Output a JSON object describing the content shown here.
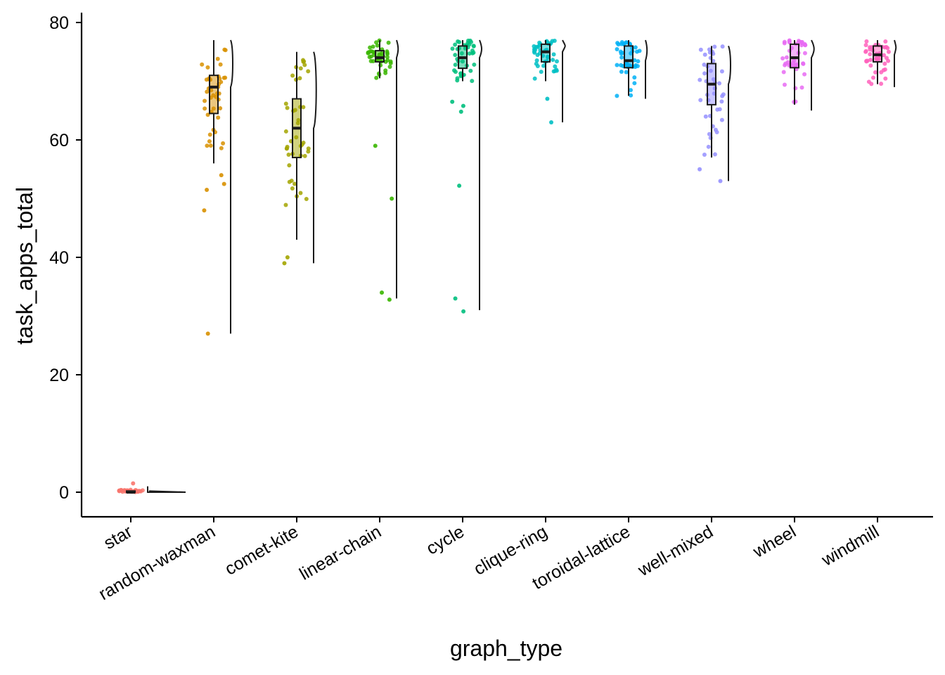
{
  "chart_data": {
    "type": "box-jitter-violin",
    "title": "",
    "xlabel": "graph_type",
    "ylabel": "task_apps_total",
    "ylim": [
      -4,
      81
    ],
    "yticks": [
      0,
      20,
      40,
      60,
      80
    ],
    "grid": false,
    "legend": "none",
    "categories": [
      "star",
      "random-waxman",
      "comet-kite",
      "linear-chain",
      "cycle",
      "clique-ring",
      "toroidal-lattice",
      "well-mixed",
      "wheel",
      "windmill"
    ],
    "colors": [
      "#F8766D",
      "#D89000",
      "#A3A500",
      "#39B600",
      "#00BF7D",
      "#00BFC4",
      "#00B0F6",
      "#9590FF",
      "#E76BF3",
      "#FF62BC"
    ],
    "boxes": [
      {
        "q1": 0,
        "median": 0,
        "q3": 0.2,
        "whisker_low": 0,
        "whisker_high": 0.3
      },
      {
        "q1": 64.5,
        "median": 69,
        "q3": 71,
        "whisker_low": 56,
        "whisker_high": 77
      },
      {
        "q1": 57,
        "median": 62,
        "q3": 67,
        "whisker_low": 43,
        "whisker_high": 75
      },
      {
        "q1": 73.3,
        "median": 74,
        "q3": 75.2,
        "whisker_low": 70.5,
        "whisker_high": 77
      },
      {
        "q1": 72.2,
        "median": 74,
        "q3": 76,
        "whisker_low": 70,
        "whisker_high": 77
      },
      {
        "q1": 73.3,
        "median": 75,
        "q3": 76.3,
        "whisker_low": 70,
        "whisker_high": 77
      },
      {
        "q1": 72.3,
        "median": 73.5,
        "q3": 76,
        "whisker_low": 67.5,
        "whisker_high": 77
      },
      {
        "q1": 66,
        "median": 69.5,
        "q3": 73,
        "whisker_low": 57,
        "whisker_high": 76
      },
      {
        "q1": 72.3,
        "median": 74,
        "q3": 76.3,
        "whisker_low": 66,
        "whisker_high": 77
      },
      {
        "q1": 73.3,
        "median": 74.5,
        "q3": 76,
        "whisker_low": 69.5,
        "whisker_high": 77
      }
    ],
    "violin_ranges": [
      [
        0,
        1
      ],
      [
        27,
        77
      ],
      [
        39,
        75
      ],
      [
        33,
        77
      ],
      [
        31,
        77
      ],
      [
        63,
        77
      ],
      [
        67,
        77
      ],
      [
        53,
        76
      ],
      [
        65,
        77
      ],
      [
        69,
        77
      ]
    ],
    "outliers": [
      [
        1.5
      ],
      [
        48,
        51.5,
        52.5,
        54,
        27
      ],
      [
        39,
        40
      ],
      [
        59,
        50,
        34,
        32.8
      ],
      [
        66.5,
        65.8,
        64.8,
        52.2,
        33,
        30.8
      ],
      [
        67,
        63
      ],
      [],
      [
        55,
        53
      ],
      [],
      []
    ]
  }
}
